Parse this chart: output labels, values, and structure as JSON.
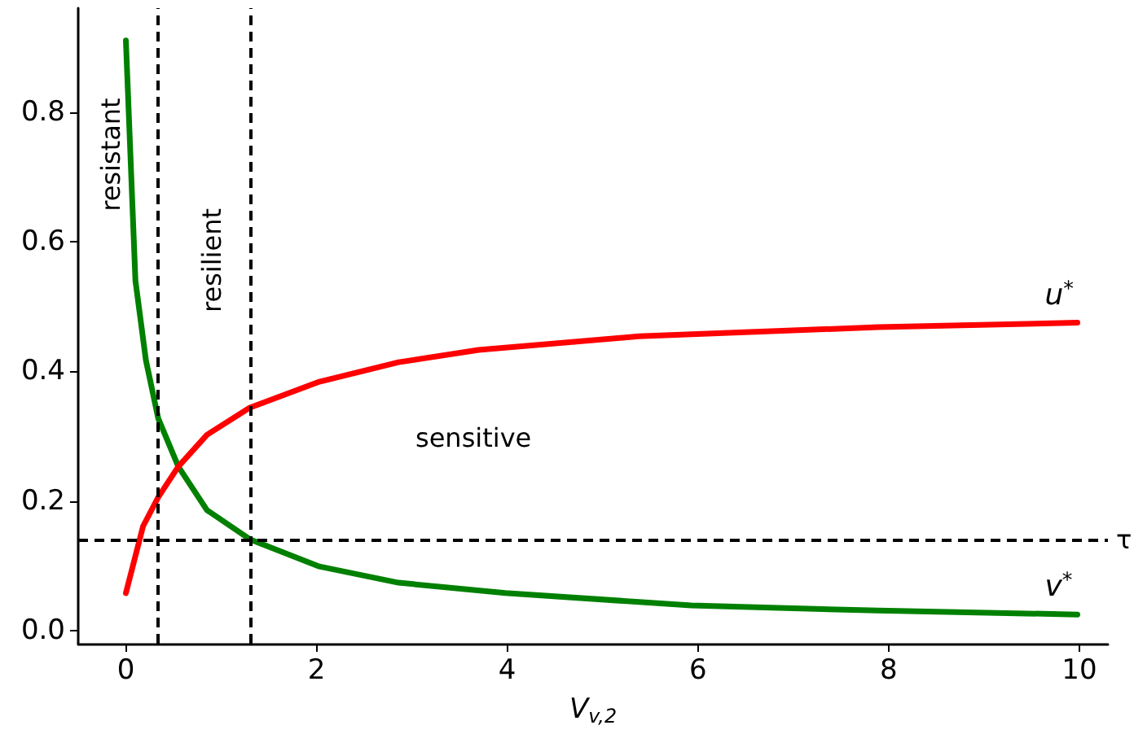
{
  "chart_data": {
    "type": "line",
    "xlabel": "V$_{v,2}$",
    "xlim": [
      -0.5,
      10.3
    ],
    "ylim": [
      -0.02,
      0.96
    ],
    "xticks": [
      0,
      2,
      4,
      6,
      8,
      10
    ],
    "yticks": [
      {
        "value": 0,
        "label": "0.0"
      },
      {
        "value": 0.2,
        "label": "0.2"
      },
      {
        "value": 0.4,
        "label": "0.4"
      },
      {
        "value": 0.6,
        "label": "0.6"
      },
      {
        "value": 0.8,
        "label": "0.8"
      }
    ],
    "series": [
      {
        "name": "v$^{*}$",
        "color": "#008000",
        "x": [
          0,
          0.1,
          0.21,
          0.34,
          0.55,
          0.85,
          1.3,
          2.03,
          2.86,
          3.98,
          5.93,
          7.89,
          9.98
        ],
        "values": [
          0.91,
          0.54,
          0.417,
          0.327,
          0.253,
          0.186,
          0.141,
          0.099,
          0.074,
          0.058,
          0.039,
          0.031,
          0.025
        ]
      },
      {
        "name": "u$^{*}$",
        "color": "#ff0000",
        "x": [
          0,
          0.18,
          0.34,
          0.55,
          0.85,
          1.3,
          2.03,
          2.86,
          3.7,
          5.38,
          7.89,
          9.98
        ],
        "values": [
          0.058,
          0.161,
          0.206,
          0.253,
          0.302,
          0.344,
          0.384,
          0.414,
          0.433,
          0.454,
          0.468,
          0.475
        ]
      }
    ],
    "ref_lines": [
      {
        "axis": "y",
        "value": 0.138,
        "label": "τ",
        "color": "#000000",
        "line_style": "dashed"
      },
      {
        "axis": "x",
        "value": 0.33,
        "color": "#000000",
        "line_style": "dashed"
      },
      {
        "axis": "x",
        "value": 1.3,
        "color": "#000000",
        "line_style": "dashed"
      }
    ],
    "annotations": [
      "resistant",
      "resilient",
      "sensitive"
    ],
    "grid": false,
    "legend": false,
    "marker": "none",
    "line_style": "solid"
  }
}
